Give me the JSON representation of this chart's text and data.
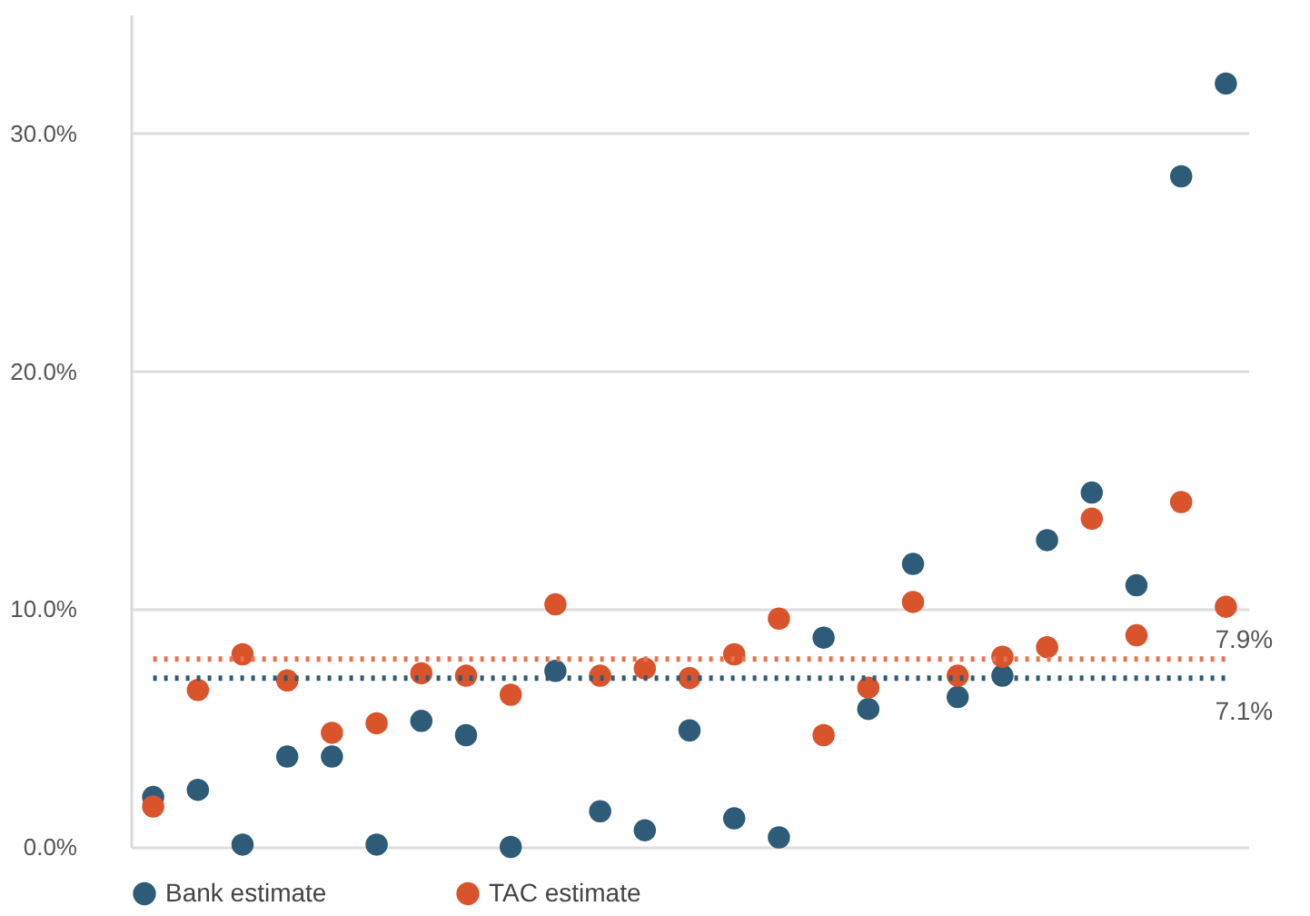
{
  "chart_data": {
    "type": "scatter",
    "categories": [
      null,
      null,
      null,
      null,
      null,
      null,
      null,
      null,
      null,
      null,
      null,
      null,
      null,
      null,
      null,
      null,
      null,
      null,
      null,
      null,
      null,
      null,
      null,
      null,
      null
    ],
    "series": [
      {
        "name": "Bank estimate",
        "color": "#2e5b78",
        "values": [
          2.1,
          2.4,
          0.1,
          3.8,
          3.8,
          0.1,
          5.3,
          4.7,
          0.0,
          7.4,
          1.5,
          0.7,
          4.9,
          1.2,
          0.4,
          8.8,
          5.8,
          11.9,
          6.3,
          7.2,
          12.9,
          14.9,
          11.0,
          28.2,
          32.1
        ]
      },
      {
        "name": "TAC estimate",
        "color": "#d9532b",
        "values": [
          1.7,
          6.6,
          8.1,
          7.0,
          4.8,
          5.2,
          7.3,
          7.2,
          6.4,
          10.2,
          7.2,
          7.5,
          7.1,
          8.1,
          9.6,
          4.7,
          6.7,
          10.3,
          7.2,
          8.0,
          8.4,
          13.8,
          8.9,
          14.5,
          10.1
        ]
      }
    ],
    "ylim": [
      0,
      35
    ],
    "yticks": [
      {
        "value": 0,
        "label": "0.0%"
      },
      {
        "value": 10,
        "label": "10.0%"
      },
      {
        "value": 20,
        "label": "20.0%"
      },
      {
        "value": 30,
        "label": "30.0%"
      }
    ],
    "ref_lines": [
      {
        "axis": "y",
        "value": 7.9,
        "label": "7.9%",
        "color": "#e8734f",
        "line_style": "dotted"
      },
      {
        "axis": "y",
        "value": 7.1,
        "label": "7.1%",
        "color": "#2e5b78",
        "line_style": "dotted"
      }
    ],
    "grid": "y",
    "legend": "bottom",
    "marker": "circle",
    "tick_labels": "y"
  }
}
